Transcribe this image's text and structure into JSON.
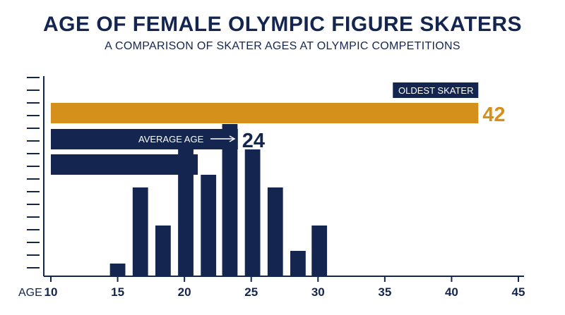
{
  "title": "AGE OF FEMALE OLYMPIC FIGURE SKATERS",
  "subtitle": "A COMPARISON OF SKATER AGES AT OLYMPIC COMPETITIONS",
  "colors": {
    "navy": "#14264f",
    "gold": "#d4901b",
    "white": "#ffffff"
  },
  "chart_data": {
    "type": "bar",
    "title": "AGE OF FEMALE OLYMPIC FIGURE SKATERS",
    "subtitle": "A COMPARISON OF SKATER AGES AT OLYMPIC COMPETITIONS",
    "xlabel": "AGE",
    "xlim": [
      10,
      45
    ],
    "x_ticks": [
      10,
      15,
      20,
      25,
      30,
      35,
      40,
      45
    ],
    "grid": false,
    "histogram": {
      "bin_width": 1.6,
      "x": [
        15,
        16.7,
        18.4,
        20.1,
        21.8,
        23.4,
        25.1,
        26.8,
        28.5,
        30.1
      ],
      "values": [
        1,
        7,
        4,
        10,
        8,
        12,
        10,
        7,
        2,
        4
      ]
    },
    "bars": [
      {
        "label": "OLDEST SKATER",
        "value": 42,
        "value_label": "42",
        "color": "#d4901b"
      },
      {
        "label": "AVERAGE AGE",
        "value": 24,
        "value_label": "24",
        "color": "#14264f"
      },
      {
        "label": "",
        "value": 21,
        "value_label": "",
        "color": "#14264f"
      }
    ]
  }
}
